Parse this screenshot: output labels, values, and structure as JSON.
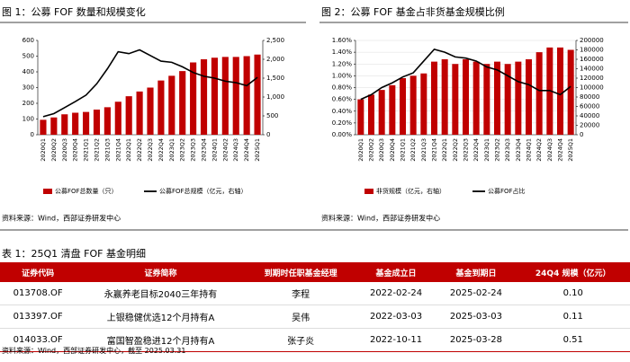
{
  "figures": [
    {
      "title": "图 1：公募 FOF 数量和规模变化",
      "source": "资料来源：Wind，西部证券研发中心"
    },
    {
      "title": "图 2：公募 FOF 基金占非货基金规模比例",
      "source": "资料来源：Wind，西部证券研发中心"
    }
  ],
  "chart_data": [
    {
      "type": "combo",
      "categories": [
        "2020Q1",
        "2020Q2",
        "2020Q3",
        "2020Q4",
        "2021Q1",
        "2021Q2",
        "2021Q3",
        "2021Q4",
        "2022Q1",
        "2022Q2",
        "2022Q3",
        "2022Q4",
        "2023Q1",
        "2023Q2",
        "2023Q3",
        "2023Q4",
        "2024Q1",
        "2024Q2",
        "2024Q3",
        "2024Q4",
        "2025Q1"
      ],
      "series": [
        {
          "name": "公募FOF总数量（只）",
          "type": "bar",
          "color": "#c00000",
          "values": [
            95,
            110,
            130,
            140,
            145,
            160,
            175,
            210,
            245,
            275,
            300,
            345,
            375,
            405,
            460,
            480,
            490,
            495,
            495,
            500,
            510
          ]
        },
        {
          "name": "公募FOF总规模（亿元，右轴）",
          "type": "line",
          "axis": "y2",
          "color": "#000000",
          "values": [
            480,
            560,
            720,
            880,
            1050,
            1350,
            1750,
            2200,
            2150,
            2250,
            2100,
            1950,
            1920,
            1800,
            1650,
            1550,
            1500,
            1420,
            1380,
            1300,
            1520
          ]
        }
      ],
      "ylim": [
        0,
        600
      ],
      "yticks": [
        0,
        100,
        200,
        300,
        400,
        500,
        600
      ],
      "y2lim": [
        0,
        2500
      ],
      "y2ticks": [
        0,
        500,
        {
          "value": 1000,
          "label": "1,000"
        },
        {
          "value": 1500,
          "label": "1,500"
        },
        {
          "value": 2000,
          "label": "2,000"
        },
        {
          "value": 2500,
          "label": "2,500"
        }
      ]
    },
    {
      "type": "combo",
      "categories": [
        "2020Q1",
        "2020Q2",
        "2020Q3",
        "2020Q4",
        "2021Q1",
        "2021Q2",
        "2021Q3",
        "2021Q4",
        "2022Q1",
        "2022Q2",
        "2022Q3",
        "2022Q4",
        "2023Q1",
        "2023Q2",
        "2023Q3",
        "2023Q4",
        "2024Q1",
        "2024Q2",
        "2024Q3",
        "2024Q4",
        "2025Q1"
      ],
      "series": [
        {
          "name": "非货规模（亿元，右轴）",
          "type": "bar",
          "axis": "y2",
          "color": "#c00000",
          "values": [
            75000,
            85000,
            95000,
            105000,
            120000,
            125000,
            130000,
            155000,
            160000,
            150000,
            160000,
            155000,
            150000,
            155000,
            150000,
            155000,
            160000,
            175000,
            185000,
            185000,
            180000
          ]
        },
        {
          "name": "公募FOF占比",
          "type": "line",
          "color": "#000000",
          "values": [
            0.6,
            0.68,
            0.8,
            0.88,
            0.98,
            1.05,
            1.25,
            1.45,
            1.4,
            1.32,
            1.3,
            1.25,
            1.15,
            1.1,
            1.0,
            0.9,
            0.85,
            0.75,
            0.75,
            0.68,
            0.82
          ]
        }
      ],
      "ylim": [
        0,
        1.6
      ],
      "yticks": [
        {
          "value": 0,
          "label": "0.00%"
        },
        {
          "value": 0.2,
          "label": "0.20%"
        },
        {
          "value": 0.4,
          "label": "0.40%"
        },
        {
          "value": 0.6,
          "label": "0.60%"
        },
        {
          "value": 0.8,
          "label": "0.80%"
        },
        {
          "value": 1.0,
          "label": "1.00%"
        },
        {
          "value": 1.2,
          "label": "1.20%"
        },
        {
          "value": 1.4,
          "label": "1.40%"
        },
        {
          "value": 1.6,
          "label": "1.60%"
        }
      ],
      "y2lim": [
        0,
        200000
      ],
      "y2ticks": [
        0,
        20000,
        40000,
        60000,
        80000,
        100000,
        120000,
        140000,
        160000,
        180000,
        200000
      ]
    }
  ],
  "table": {
    "title": "表 1：25Q1 清盘 FOF 基金明细",
    "header": [
      "证券代码",
      "证券简称",
      "到期时任职基金经理",
      "基金成立日",
      "基金到期日",
      "24Q4 规模（亿元）"
    ],
    "rows": [
      [
        "013708.OF",
        "永赢养老目标2040三年持有",
        "李程",
        "2022-02-24",
        "2025-02-24",
        "0.10"
      ],
      [
        "013397.OF",
        "上银稳健优选12个月持有A",
        "吴伟",
        "2022-03-03",
        "2025-03-03",
        "0.11"
      ],
      [
        "014033.OF",
        "富国智盈稳进12个月持有A",
        "张子炎",
        "2022-10-11",
        "2025-03-28",
        "0.51"
      ]
    ],
    "source": "资料来源：Wind，西部证券研发中心，截至 2025.03.31"
  }
}
